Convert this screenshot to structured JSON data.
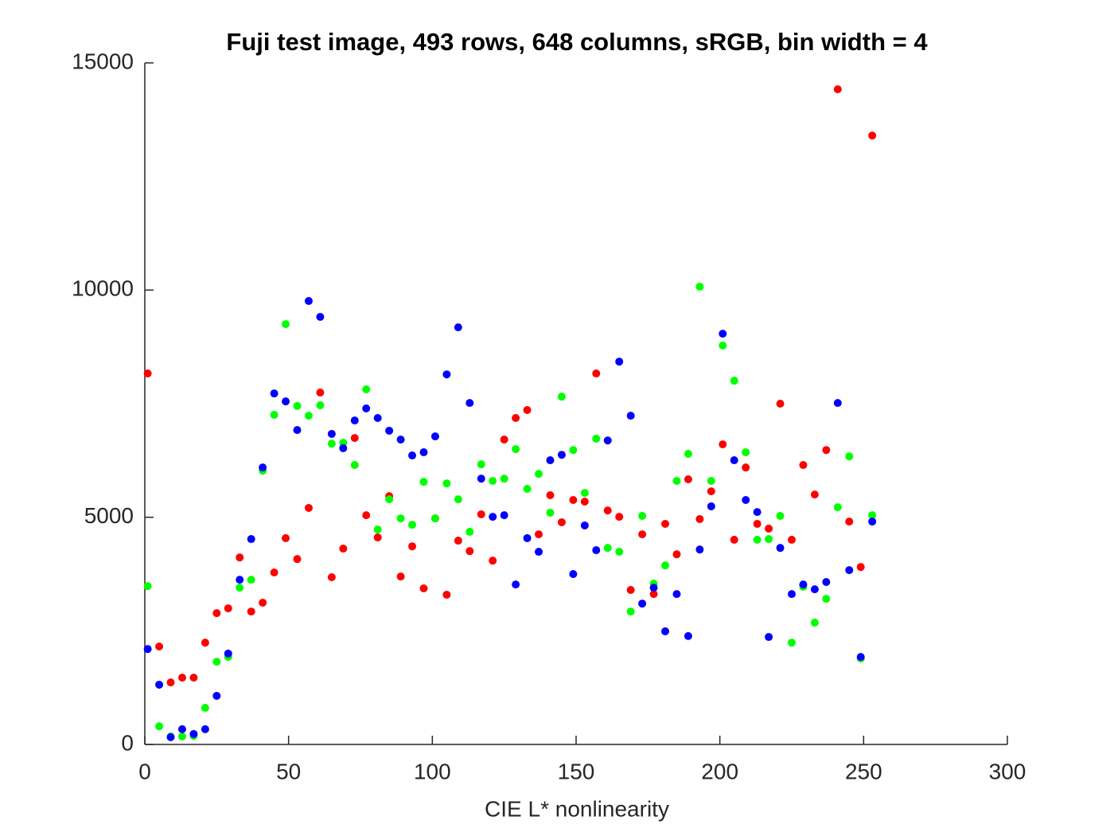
{
  "chart_data": {
    "type": "scatter",
    "title": "Fuji test image, 493 rows, 648 columns, sRGB, bin width = 4",
    "xlabel": "CIE L* nonlinearity",
    "x": [
      1,
      5,
      9,
      13,
      17,
      21,
      25,
      29,
      33,
      37,
      41,
      45,
      49,
      53,
      57,
      61,
      65,
      69,
      73,
      77,
      81,
      85,
      89,
      93,
      97,
      101,
      105,
      109,
      113,
      117,
      121,
      125,
      129,
      133,
      137,
      141,
      145,
      149,
      153,
      157,
      161,
      165,
      169,
      173,
      177,
      181,
      185,
      189,
      193,
      197,
      201,
      205,
      209,
      213,
      217,
      221,
      225,
      229,
      233,
      237,
      241,
      245,
      249,
      253
    ],
    "series": [
      {
        "color": "#ff0000",
        "values": [
          8165,
          2155,
          1365,
          1470,
          1470,
          2240,
          2890,
          2995,
          4115,
          2925,
          3120,
          3785,
          4540,
          4080,
          5205,
          7745,
          3680,
          4310,
          6745,
          5045,
          4555,
          5465,
          3695,
          4360,
          3435,
          4975,
          3295,
          4485,
          4255,
          5065,
          4045,
          6710,
          7185,
          7360,
          4625,
          5485,
          4890,
          5380,
          5345,
          8165,
          5150,
          5010,
          3400,
          4625,
          3310,
          4855,
          4185,
          5835,
          4960,
          5570,
          6605,
          4505,
          6095,
          4855,
          4750,
          7500,
          4505,
          6150,
          5500,
          6480,
          14420,
          4905,
          3905,
          13400
        ]
      },
      {
        "color": "#00ff00",
        "values": [
          3485,
          400,
          175,
          175,
          190,
          805,
          1820,
          1925,
          3450,
          3625,
          6025,
          7255,
          9250,
          7450,
          7235,
          7465,
          6620,
          6640,
          6150,
          7815,
          4730,
          5395,
          4975,
          4835,
          5780,
          4975,
          5745,
          5395,
          4680,
          6165,
          5800,
          5850,
          6500,
          5625,
          5955,
          5100,
          7655,
          6480,
          5535,
          6730,
          4325,
          4240,
          2925,
          5030,
          3540,
          3940,
          5800,
          6395,
          10075,
          5800,
          8780,
          8005,
          6430,
          4505,
          4520,
          5030,
          2240,
          3470,
          2680,
          3205,
          5220,
          6340,
          1890,
          5045
        ]
      },
      {
        "color": "#0000ff",
        "values": [
          2100,
          1315,
          160,
          335,
          230,
          335,
          1070,
          2000,
          3625,
          4520,
          6095,
          7725,
          7550,
          6920,
          9760,
          9410,
          6835,
          6520,
          7130,
          7395,
          7185,
          6905,
          6710,
          6360,
          6430,
          6780,
          8145,
          9180,
          7515,
          5850,
          5010,
          5045,
          3520,
          4540,
          4240,
          6255,
          6375,
          3750,
          4820,
          4275,
          6690,
          8425,
          7235,
          3100,
          3450,
          2490,
          3310,
          2385,
          4290,
          5240,
          9040,
          6255,
          5380,
          5115,
          2365,
          4325,
          3310,
          3520,
          3415,
          3575,
          7515,
          3835,
          1925,
          4905
        ]
      }
    ],
    "xlim": [
      0,
      300
    ],
    "xticks": [
      0,
      50,
      100,
      150,
      200,
      250,
      300
    ],
    "ylim": [
      0,
      15000
    ],
    "yticks": [
      0,
      5000,
      10000,
      15000
    ],
    "grid": false
  }
}
